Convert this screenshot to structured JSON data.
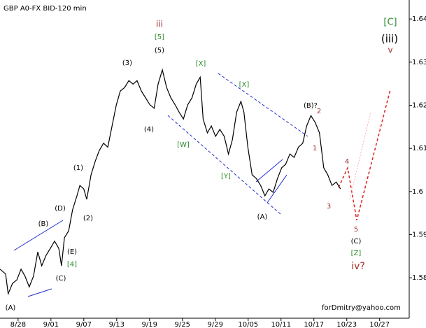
{
  "chart_data": {
    "type": "line",
    "title": "GBP A0-FX BID-120 min",
    "watermark": "forDmitry@yahoo.com",
    "color": "#000000",
    "x": [
      -0.55,
      -0.38,
      -0.3,
      -0.17,
      -0.04,
      0.09,
      0.21,
      0.34,
      0.47,
      0.6,
      0.72,
      0.85,
      0.98,
      1.11,
      1.24,
      1.32,
      1.41,
      1.54,
      1.66,
      1.79,
      1.88,
      2.0,
      2.09,
      2.22,
      2.35,
      2.47,
      2.6,
      2.73,
      2.86,
      2.99,
      3.11,
      3.24,
      3.37,
      3.5,
      3.62,
      3.75,
      3.88,
      4.01,
      4.14,
      4.26,
      4.39,
      4.52,
      4.65,
      4.78,
      4.9,
      5.03,
      5.16,
      5.29,
      5.42,
      5.54,
      5.63,
      5.76,
      5.88,
      6.01,
      6.14,
      6.27,
      6.4,
      6.52,
      6.65,
      6.78,
      6.87,
      6.99,
      7.12,
      7.25,
      7.38,
      7.51,
      7.63,
      7.76,
      7.89,
      8.02,
      8.14,
      8.27,
      8.4,
      8.53,
      8.66,
      8.78,
      8.91,
      9.04,
      9.17,
      9.3,
      9.42,
      9.55,
      9.68,
      9.81
    ],
    "values": [
      1.582,
      1.5809,
      1.5763,
      1.5787,
      1.5795,
      1.582,
      1.5804,
      1.5779,
      1.5804,
      1.586,
      1.5828,
      1.5852,
      1.5868,
      1.5885,
      1.5868,
      1.5828,
      1.5893,
      1.5909,
      1.5958,
      1.599,
      1.6014,
      1.6006,
      1.5982,
      1.6039,
      1.6071,
      1.6095,
      1.6112,
      1.6103,
      1.6152,
      1.6201,
      1.6233,
      1.6241,
      1.6257,
      1.6249,
      1.6257,
      1.6233,
      1.6217,
      1.6201,
      1.6193,
      1.6249,
      1.6282,
      1.6241,
      1.6217,
      1.6201,
      1.6184,
      1.6168,
      1.6201,
      1.6217,
      1.6249,
      1.6265,
      1.6168,
      1.6136,
      1.6152,
      1.6128,
      1.6144,
      1.6128,
      1.6087,
      1.612,
      1.6184,
      1.6209,
      1.6184,
      1.6103,
      1.6039,
      1.603,
      1.6014,
      1.599,
      1.6006,
      1.5998,
      1.603,
      1.6055,
      1.6063,
      1.6087,
      1.6079,
      1.6103,
      1.6112,
      1.6152,
      1.6176,
      1.616,
      1.6136,
      1.6055,
      1.6039,
      1.6014,
      1.6022,
      1.6006
    ],
    "xlim": [
      -0.55,
      11.9
    ],
    "xticks": [
      {
        "value": 0,
        "label": "8/28"
      },
      {
        "value": 1,
        "label": "9/01"
      },
      {
        "value": 2,
        "label": "9/07"
      },
      {
        "value": 3,
        "label": "9/13"
      },
      {
        "value": 4,
        "label": "9/19"
      },
      {
        "value": 5,
        "label": "9/25"
      },
      {
        "value": 6,
        "label": "9/29"
      },
      {
        "value": 7,
        "label": "10/05"
      },
      {
        "value": 8,
        "label": "10/11"
      },
      {
        "value": 9,
        "label": "10/17"
      },
      {
        "value": 10,
        "label": "10/23"
      },
      {
        "value": 11,
        "label": "10/27"
      }
    ],
    "ylim": [
      1.5695,
      1.6444
    ],
    "yticks": [
      1.58,
      1.59,
      1.6,
      1.61,
      1.62,
      1.63,
      1.64
    ],
    "annotations": [
      {
        "text": "(A)",
        "color": "#000000"
      },
      {
        "text": "(B)",
        "color": "#000000"
      },
      {
        "text": "(C)",
        "color": "#000000"
      },
      {
        "text": "(D)",
        "color": "#000000"
      },
      {
        "text": "(E)",
        "color": "#000000"
      },
      {
        "text": "[4]",
        "color": "#2a8a2a"
      },
      {
        "text": "(1)",
        "color": "#000000"
      },
      {
        "text": "(2)",
        "color": "#000000"
      },
      {
        "text": "(3)",
        "color": "#000000"
      },
      {
        "text": "(4)",
        "color": "#000000"
      },
      {
        "text": "(5)",
        "color": "#000000"
      },
      {
        "text": "[5]",
        "color": "#2a8a2a"
      },
      {
        "text": "iii",
        "color": "#a0302a"
      },
      {
        "text": "[W]",
        "color": "#2a8a2a"
      },
      {
        "text": "[X]",
        "color": "#2a8a2a"
      },
      {
        "text": "[X]",
        "color": "#2a8a2a"
      },
      {
        "text": "[Y]",
        "color": "#2a8a2a"
      },
      {
        "text": "(A)",
        "color": "#000000"
      },
      {
        "text": "(B)?",
        "color": "#000000"
      },
      {
        "text": "2",
        "color": "#a0302a"
      },
      {
        "text": "1",
        "color": "#a0302a"
      },
      {
        "text": "4",
        "color": "#a0302a"
      },
      {
        "text": "3",
        "color": "#a0302a"
      },
      {
        "text": "5",
        "color": "#a0302a"
      },
      {
        "text": "(C)",
        "color": "#000000"
      },
      {
        "text": "[Z]",
        "color": "#2a8a2a"
      },
      {
        "text": "iv?",
        "color": "#a0302a"
      },
      {
        "text": "[C]",
        "color": "#2a8a2a"
      },
      {
        "text": "(iii)",
        "color": "#000000"
      },
      {
        "text": "v",
        "color": "#a0302a"
      }
    ]
  }
}
